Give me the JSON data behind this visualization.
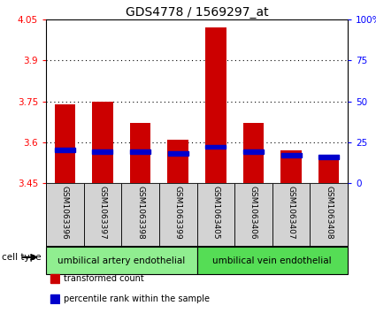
{
  "title": "GDS4778 / 1569297_at",
  "samples": [
    "GSM1063396",
    "GSM1063397",
    "GSM1063398",
    "GSM1063399",
    "GSM1063405",
    "GSM1063406",
    "GSM1063407",
    "GSM1063408"
  ],
  "transformed_counts": [
    3.74,
    3.75,
    3.67,
    3.61,
    4.02,
    3.67,
    3.57,
    3.55
  ],
  "percentile_ranks": [
    20,
    19,
    19,
    18,
    22,
    19,
    17,
    16
  ],
  "y_min": 3.45,
  "y_max": 4.05,
  "y_ticks": [
    3.45,
    3.6,
    3.75,
    3.9,
    4.05
  ],
  "y_tick_labels": [
    "3.45",
    "3.6",
    "3.75",
    "3.9",
    "4.05"
  ],
  "right_y_ticks": [
    0,
    25,
    50,
    75,
    100
  ],
  "right_y_labels": [
    "0",
    "25",
    "50",
    "75",
    "100%"
  ],
  "bar_bottom": 3.45,
  "bar_color": "#cc0000",
  "percentile_color": "#0000cc",
  "cell_type_groups": [
    {
      "label": "umbilical artery endothelial",
      "start": 0,
      "end": 4,
      "color": "#90ee90"
    },
    {
      "label": "umbilical vein endothelial",
      "start": 4,
      "end": 8,
      "color": "#55dd55"
    }
  ],
  "cell_type_label": "cell type",
  "legend_items": [
    {
      "color": "#cc0000",
      "label": "transformed count"
    },
    {
      "color": "#0000cc",
      "label": "percentile rank within the sample"
    }
  ],
  "grid_color": "black",
  "sample_box_color": "#d3d3d3",
  "title_fontsize": 10,
  "tick_fontsize": 7.5,
  "sample_fontsize": 6.5,
  "celltype_fontsize": 7.5,
  "legend_fontsize": 7
}
